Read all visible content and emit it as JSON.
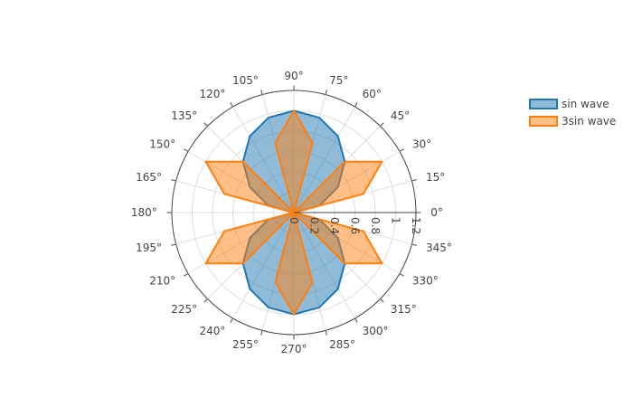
{
  "chart_data": {
    "type": "polar-area",
    "angular_unit": "degrees",
    "angular_tick_step": 15,
    "angular_tick_suffix": "°",
    "radial_range": [
      0,
      1.2
    ],
    "radial_ticks": [
      "0",
      "0.2",
      "0.4",
      "0.6",
      "0.8",
      "1",
      "1.2"
    ],
    "radial_tick_values": [
      0,
      0.2,
      0.4,
      0.6,
      0.8,
      1.0,
      1.2
    ],
    "grid": true,
    "legend_position": "top-right",
    "series": [
      {
        "name": "sin wave",
        "color": "#1f77b4",
        "fill": true,
        "formula": "r = |sin(theta)|",
        "angle_step_deg": 15
      },
      {
        "name": "3sin wave",
        "color": "#ff7f0e",
        "fill": true,
        "formula": "r = |sin(3*theta)|",
        "angle_step_deg": 15
      }
    ]
  },
  "legend": {
    "items": [
      {
        "label": "sin wave",
        "color": "#1f77b4"
      },
      {
        "label": "3sin wave",
        "color": "#ff7f0e"
      }
    ]
  }
}
